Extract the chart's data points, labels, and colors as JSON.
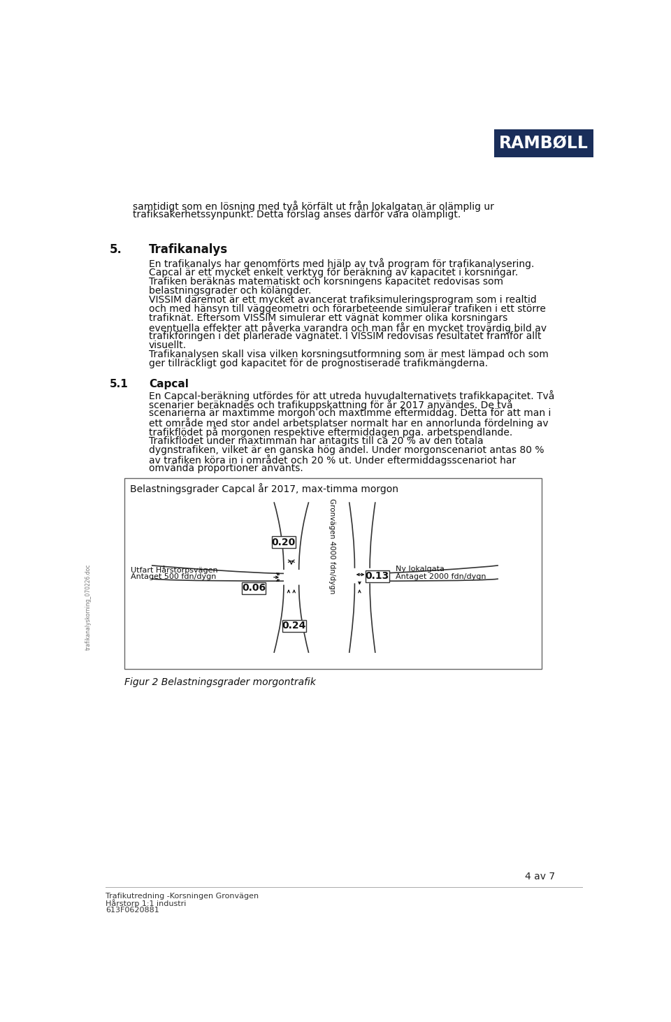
{
  "page_bg": "#ffffff",
  "logo_text": "RAMBØLL",
  "logo_bg": "#1a2e5a",
  "logo_text_color": "#ffffff",
  "page_number": "4 av 7",
  "footer_line1": "Trafikutredning -Korsningen Gronvägen",
  "footer_line2": "Hårstorp 1:1 industri",
  "footer_line3": "613F0620881",
  "sidebar_text": "trafikanalyskorning_070226.doc",
  "para1_line1": "samtidigt som en lösning med två körfält ut från lokalgatan är olämplig ur",
  "para1_line2": "trafiksakerhetssynpunkt. Detta förslag anses därför vara olämpligt.",
  "heading1_num": "5.",
  "heading1_text": "Trafikanalys",
  "body1_lines": [
    "En trafikanalys har genomförts med hjälp av två program för trafikanalysering.",
    "Capcal är ett mycket enkelt verktyg för beräkning av kapacitet i korsningar.",
    "Trafiken beräknas matematiskt och korsningens kapacitet redovisas som",
    "belastningsgrader och kölängder.",
    "VISSIM däremot är ett mycket avancerat trafiksimuleringsprogram som i realtid",
    "och med hänsyn till väggeometri och förarbeteende simulerar trafiken i ett större",
    "trafiknät. Eftersom VISSIM simulerar ett vägnät kommer olika korsningars",
    "eventuella effekter att påverka varandra och man får en mycket trovärdig bild av",
    "trafikföringen i det planerade vägnätet. I VISSIM redovisas resultatet framför allt",
    "visuellt.",
    "Trafikanalysen skall visa vilken korsningsutformning som är mest lämpad och som",
    "ger tillräckligt god kapacitet för de prognostiserade trafikmängderna."
  ],
  "heading2_num": "5.1",
  "heading2_text": "Capcal",
  "body2_lines": [
    "En Capcal-beräkning utfördes för att utreda huvudalternativets trafikkapacitet. Två",
    "scenarier beräknades och trafikuppskattning för år 2017 användes. De två",
    "scenarierna är maxtimme morgon och maxtimme eftermiddag. Detta för att man i",
    "ett område med stor andel arbetsplatser normalt har en annorlunda fördelning av",
    "trafikflödet på morgonen respektive eftermiddagen pga. arbetspendlande.",
    "Trafikflödet under maxtimman har antagits till ca 20 % av den totala",
    "dygnstrafiken, vilket är en ganska hög andel. Under morgonscenariot antas 80 %",
    "av trafiken köra in i området och 20 % ut. Under eftermiddagsscenariot har",
    "omvända proportioner använts."
  ],
  "diagram_title": "Belastningsgrader Capcal år 2017, max-timma morgon",
  "gronvagen_label": "Gronvägen 4000 fdn/dygn",
  "utfart_label": "Utfart Hårstorpsvägen",
  "antaget500_label": "Antaget 500 fdn/dygn",
  "antaget2000_label": "Antaget 2000 fdn/dygn",
  "ny_lokalgata_label": "Ny lokalgata",
  "val_020": "0.20",
  "val_013": "0.13",
  "val_006": "0.06",
  "val_024": "0.24",
  "fig_caption": "Figur 2 Belastningsgrader morgontrafik"
}
